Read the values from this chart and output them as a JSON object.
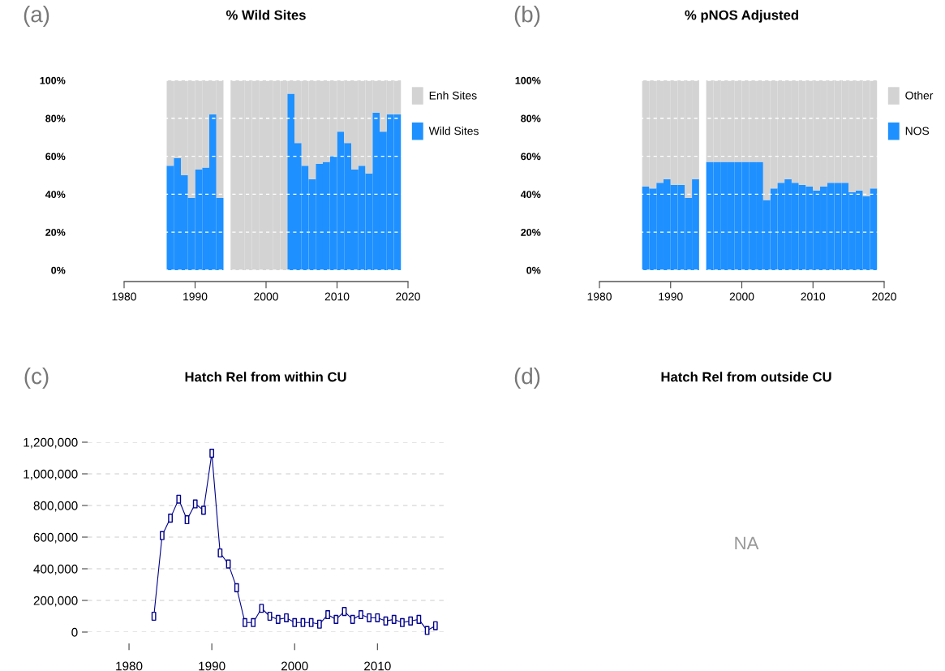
{
  "chart_data": [
    {
      "type": "bar",
      "title": "% Wild Sites",
      "annotations": [
        "(a)"
      ],
      "x": [
        1986.5,
        1987.5,
        1988.5,
        1989.5,
        1990.5,
        1991.5,
        1992.5,
        1993.5,
        1994.5,
        1995.5,
        1996.5,
        1997.5,
        1998.5,
        1999.5,
        2000.5,
        2001.5,
        2002.5,
        2003.5,
        2004.5,
        2005.5,
        2006.5,
        2007.5,
        2008.5,
        2009.5,
        2010.5,
        2011.5,
        2012.5,
        2013.5,
        2014.5,
        2015.5,
        2016.5,
        2017.5,
        2018.5
      ],
      "stacked": true,
      "series": [
        {
          "name": "Wild Sites",
          "color": "#1e90ff",
          "values": [
            55,
            59,
            50,
            38,
            53,
            54,
            82,
            38,
            null,
            0,
            0,
            0,
            0,
            0,
            0,
            0,
            0,
            93,
            67,
            55,
            48,
            56,
            57,
            60,
            73,
            67,
            53,
            55,
            51,
            83,
            73,
            82,
            82
          ]
        },
        {
          "name": "Enh Sites",
          "color": "#d3d3d3",
          "values": [
            45,
            41,
            50,
            62,
            47,
            46,
            18,
            62,
            null,
            100,
            100,
            100,
            100,
            100,
            100,
            100,
            100,
            7,
            33,
            45,
            52,
            44,
            43,
            40,
            27,
            33,
            47,
            45,
            49,
            17,
            27,
            18,
            18
          ]
        }
      ],
      "xlim": [
        1980,
        2020
      ],
      "xticks": [
        1980,
        1990,
        2000,
        2010,
        2020
      ],
      "ylim": [
        -6,
        100
      ],
      "yticks": [
        {
          "value": 0,
          "label": "0%"
        },
        {
          "value": 20,
          "label": "20%"
        },
        {
          "value": 40,
          "label": "40%"
        },
        {
          "value": 60,
          "label": "60%"
        },
        {
          "value": 80,
          "label": "80%"
        },
        {
          "value": 100,
          "label": "100%"
        }
      ],
      "grid": "y",
      "legend": "right"
    },
    {
      "type": "bar",
      "title": "% pNOS Adjusted",
      "annotations": [
        "(b)"
      ],
      "x": [
        1986.5,
        1987.5,
        1988.5,
        1989.5,
        1990.5,
        1991.5,
        1992.5,
        1993.5,
        1994.5,
        1995.5,
        1996.5,
        1997.5,
        1998.5,
        1999.5,
        2000.5,
        2001.5,
        2002.5,
        2003.5,
        2004.5,
        2005.5,
        2006.5,
        2007.5,
        2008.5,
        2009.5,
        2010.5,
        2011.5,
        2012.5,
        2013.5,
        2014.5,
        2015.5,
        2016.5,
        2017.5,
        2018.5
      ],
      "stacked": true,
      "series": [
        {
          "name": "NOS",
          "color": "#1e90ff",
          "values": [
            44,
            43,
            46,
            48,
            45,
            45,
            38,
            48,
            null,
            57,
            57,
            57,
            57,
            57,
            57,
            57,
            57,
            37,
            43,
            46,
            48,
            46,
            45,
            44,
            42,
            44,
            46,
            46,
            46,
            41,
            42,
            39,
            43
          ]
        },
        {
          "name": "Other",
          "color": "#d3d3d3",
          "values": [
            56,
            57,
            54,
            52,
            55,
            55,
            62,
            52,
            null,
            43,
            43,
            43,
            43,
            43,
            43,
            43,
            43,
            63,
            57,
            54,
            52,
            54,
            55,
            56,
            58,
            56,
            54,
            54,
            54,
            59,
            58,
            61,
            57
          ]
        }
      ],
      "xlim": [
        1980,
        2020
      ],
      "xticks": [
        1980,
        1990,
        2000,
        2010,
        2020
      ],
      "ylim": [
        -6,
        100
      ],
      "yticks": [
        {
          "value": 0,
          "label": "0%"
        },
        {
          "value": 20,
          "label": "20%"
        },
        {
          "value": 40,
          "label": "40%"
        },
        {
          "value": 60,
          "label": "60%"
        },
        {
          "value": 80,
          "label": "80%"
        },
        {
          "value": 100,
          "label": "100%"
        }
      ],
      "grid": "y",
      "legend": "right"
    },
    {
      "type": "line",
      "title": "Hatch Rel from within CU",
      "annotations": [
        "(c)"
      ],
      "x": [
        1983,
        1984,
        1985,
        1986,
        1987,
        1988,
        1989,
        1990,
        1991,
        1992,
        1993,
        1994,
        1995,
        1996,
        1997,
        1998,
        1999,
        2000,
        2001,
        2002,
        2003,
        2004,
        2005,
        2006,
        2007,
        2008,
        2009,
        2010,
        2011,
        2012,
        2013,
        2014,
        2015,
        2016,
        2017
      ],
      "series": [
        {
          "color": "#00008b",
          "values": [
            100000,
            610000,
            720000,
            840000,
            710000,
            810000,
            770000,
            1130000,
            500000,
            430000,
            280000,
            60000,
            60000,
            150000,
            100000,
            80000,
            90000,
            60000,
            60000,
            60000,
            50000,
            110000,
            80000,
            130000,
            80000,
            110000,
            90000,
            90000,
            70000,
            80000,
            60000,
            70000,
            80000,
            10000,
            40000
          ]
        }
      ],
      "xlim": [
        1975,
        2018
      ],
      "xticks": [
        1980,
        1990,
        2000,
        2010
      ],
      "ylim": [
        0,
        1200000
      ],
      "yticks": [
        {
          "value": 0,
          "label": "0"
        },
        {
          "value": 200000,
          "label": "200,000"
        },
        {
          "value": 400000,
          "label": "400,000"
        },
        {
          "value": 600000,
          "label": "600,000"
        },
        {
          "value": 800000,
          "label": "800,000"
        },
        {
          "value": 1000000,
          "label": "1,000,000"
        },
        {
          "value": 1200000,
          "label": "1,200,000"
        }
      ],
      "grid": "y",
      "marker": "square",
      "line_style": "solid"
    },
    {
      "type": "other",
      "title": "Hatch Rel from outside CU",
      "annotations": [
        "(d)",
        "NA"
      ]
    }
  ]
}
